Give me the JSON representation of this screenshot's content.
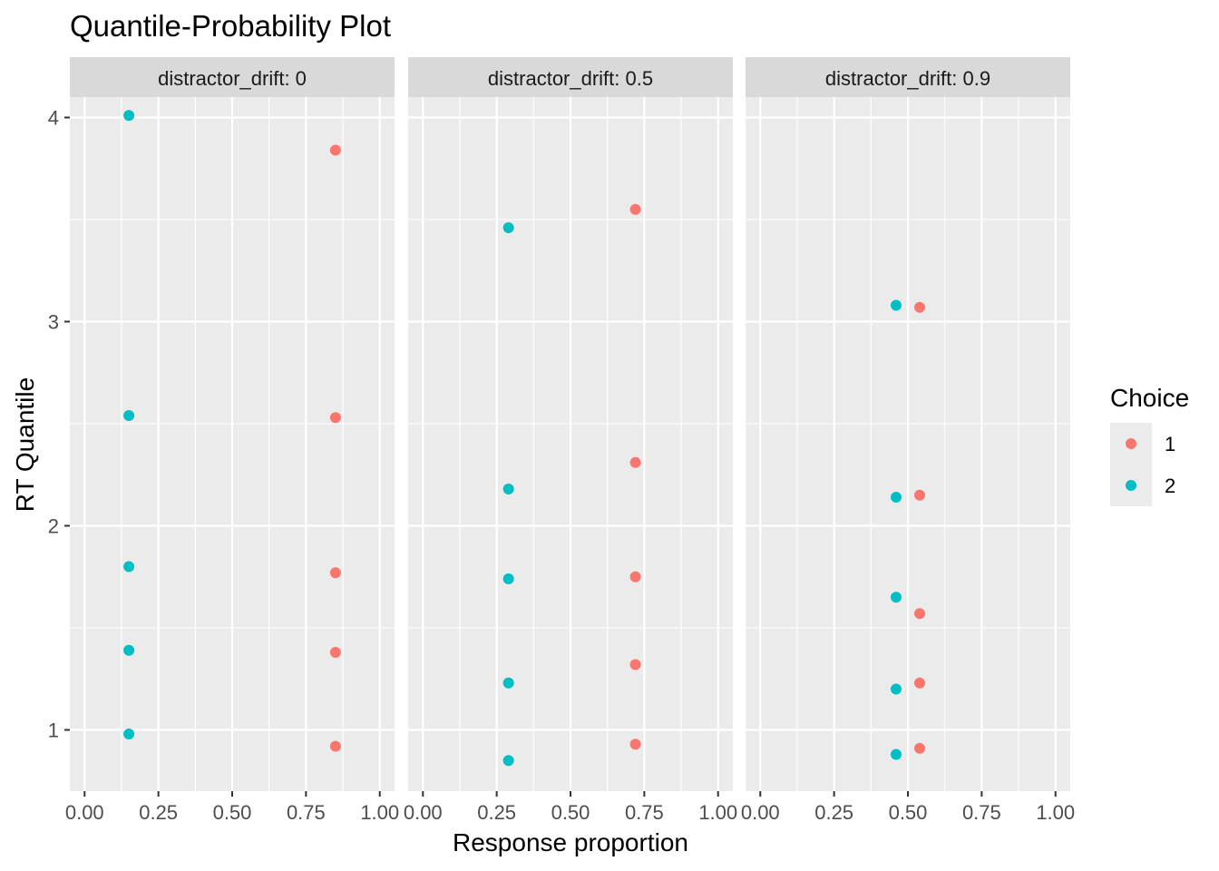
{
  "chart_data": {
    "type": "scatter",
    "title": "Quantile-Probability Plot",
    "xlabel": "Response proportion",
    "ylabel": "RT Quantile",
    "facet_prefix": "distractor_drift: ",
    "xlim": [
      -0.05,
      1.05
    ],
    "ylim": [
      0.7,
      4.1
    ],
    "x_ticks": [
      "0.00",
      "0.25",
      "0.50",
      "0.75",
      "1.00"
    ],
    "y_ticks": [
      "1",
      "2",
      "3",
      "4"
    ],
    "grid": true,
    "legend": {
      "title": "Choice",
      "position": "right",
      "entries": [
        {
          "label": "1",
          "color": "#F8766D"
        },
        {
          "label": "2",
          "color": "#00BFC4"
        }
      ]
    },
    "panels": [
      {
        "facet": "0",
        "series": [
          {
            "name": "1",
            "color": "#F8766D",
            "points": [
              [
                0.85,
                0.92
              ],
              [
                0.85,
                1.38
              ],
              [
                0.85,
                1.77
              ],
              [
                0.85,
                2.53
              ],
              [
                0.85,
                3.84
              ]
            ]
          },
          {
            "name": "2",
            "color": "#00BFC4",
            "points": [
              [
                0.15,
                0.98
              ],
              [
                0.15,
                1.39
              ],
              [
                0.15,
                1.8
              ],
              [
                0.15,
                2.54
              ],
              [
                0.15,
                4.01
              ]
            ]
          }
        ]
      },
      {
        "facet": "0.5",
        "series": [
          {
            "name": "1",
            "color": "#F8766D",
            "points": [
              [
                0.72,
                0.93
              ],
              [
                0.72,
                1.32
              ],
              [
                0.72,
                1.75
              ],
              [
                0.72,
                2.31
              ],
              [
                0.72,
                3.55
              ]
            ]
          },
          {
            "name": "2",
            "color": "#00BFC4",
            "points": [
              [
                0.29,
                0.85
              ],
              [
                0.29,
                1.23
              ],
              [
                0.29,
                1.74
              ],
              [
                0.29,
                2.18
              ],
              [
                0.29,
                3.46
              ]
            ]
          }
        ]
      },
      {
        "facet": "0.9",
        "series": [
          {
            "name": "1",
            "color": "#F8766D",
            "points": [
              [
                0.54,
                0.91
              ],
              [
                0.54,
                1.23
              ],
              [
                0.54,
                1.57
              ],
              [
                0.54,
                2.15
              ],
              [
                0.54,
                3.07
              ]
            ]
          },
          {
            "name": "2",
            "color": "#00BFC4",
            "points": [
              [
                0.46,
                0.88
              ],
              [
                0.46,
                1.2
              ],
              [
                0.46,
                1.65
              ],
              [
                0.46,
                2.14
              ],
              [
                0.46,
                3.08
              ]
            ]
          }
        ]
      }
    ]
  }
}
